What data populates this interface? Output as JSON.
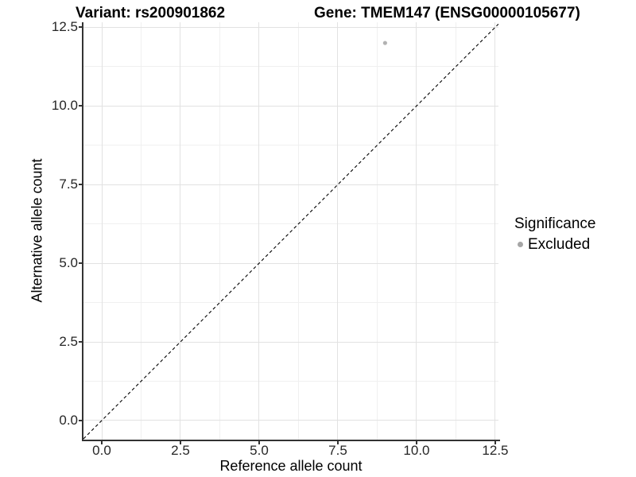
{
  "chart_data": {
    "type": "scatter",
    "title_left": "Variant: rs200901862",
    "title_right": "Gene: TMEM147 (ENSG00000105677)",
    "xlabel": "Reference allele count",
    "ylabel": "Alternative allele count",
    "x_domain": [
      -0.581,
      12.602
    ],
    "y_domain": [
      -0.608,
      12.658
    ],
    "x_major_ticks": [
      0,
      2.5,
      5,
      7.5,
      10,
      12.5
    ],
    "x_minor_ticks": [
      1.25,
      3.75,
      6.25,
      8.75,
      11.25
    ],
    "y_major_ticks": [
      0,
      2.5,
      5,
      7.5,
      10,
      12.5
    ],
    "y_minor_ticks": [
      1.25,
      3.75,
      6.25,
      8.75,
      11.25
    ],
    "x_tick_labels": [
      "0.0",
      "2.5",
      "5.0",
      "7.5",
      "10.0",
      "12.5"
    ],
    "y_tick_labels": [
      "0.0",
      "2.5",
      "5.0",
      "7.5",
      "10.0",
      "12.5"
    ],
    "grid": "major-and-minor",
    "identity_line": {
      "equation": "y = x",
      "style": "dashed",
      "color": "#000000"
    },
    "series": [
      {
        "name": "Excluded",
        "color": "#b2b2b2",
        "points": [
          {
            "x": 9,
            "y": 12
          }
        ]
      }
    ],
    "legend": {
      "position": "right",
      "title": "Significance",
      "items": [
        {
          "label": "Excluded",
          "color": "#a6a6a6"
        }
      ]
    },
    "colors": {
      "grid_major": "#e2e2e2",
      "grid_minor": "#f0f0f0",
      "axis_line": "#333333",
      "tick_text": "#262626",
      "point": "#b2b2b2"
    }
  }
}
